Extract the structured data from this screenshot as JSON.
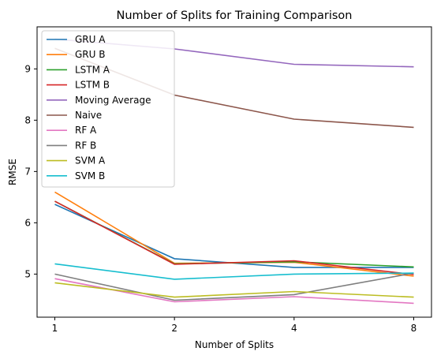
{
  "chart_data": {
    "type": "line",
    "title": "Number of Splits for Training Comparison",
    "xlabel": "Number of Splits",
    "ylabel": "RMSE",
    "x": [
      1,
      2,
      4,
      8
    ],
    "x_tick_labels": [
      "1",
      "2",
      "4",
      "8"
    ],
    "x_scale": "log2",
    "y_ticks": [
      5,
      6,
      7,
      8,
      9
    ],
    "ylim": [
      4.16,
      9.82
    ],
    "grid": false,
    "legend_position": "top-left",
    "series": [
      {
        "name": "GRU A",
        "color": "#1f77b4",
        "values": [
          6.36,
          5.3,
          5.13,
          5.13
        ]
      },
      {
        "name": "GRU B",
        "color": "#ff7f0e",
        "values": [
          6.6,
          5.21,
          5.23,
          4.96
        ]
      },
      {
        "name": "LSTM A",
        "color": "#2ca02c",
        "values": [
          6.42,
          5.2,
          5.24,
          5.14
        ]
      },
      {
        "name": "LSTM B",
        "color": "#d62728",
        "values": [
          6.42,
          5.19,
          5.26,
          4.99
        ]
      },
      {
        "name": "Moving Average",
        "color": "#9467bd",
        "values": [
          9.58,
          9.39,
          9.09,
          9.04
        ]
      },
      {
        "name": "Naive",
        "color": "#8c564b",
        "values": [
          9.4,
          8.49,
          8.02,
          7.86
        ]
      },
      {
        "name": "RF A",
        "color": "#e377c2",
        "values": [
          4.91,
          4.46,
          4.56,
          4.43
        ]
      },
      {
        "name": "RF B",
        "color": "#7f7f7f",
        "values": [
          5.0,
          4.49,
          4.6,
          5.02
        ]
      },
      {
        "name": "SVM A",
        "color": "#bcbd22",
        "values": [
          4.83,
          4.55,
          4.66,
          4.55
        ]
      },
      {
        "name": "SVM B",
        "color": "#17becf",
        "values": [
          5.2,
          4.9,
          5.0,
          5.02
        ]
      }
    ]
  }
}
